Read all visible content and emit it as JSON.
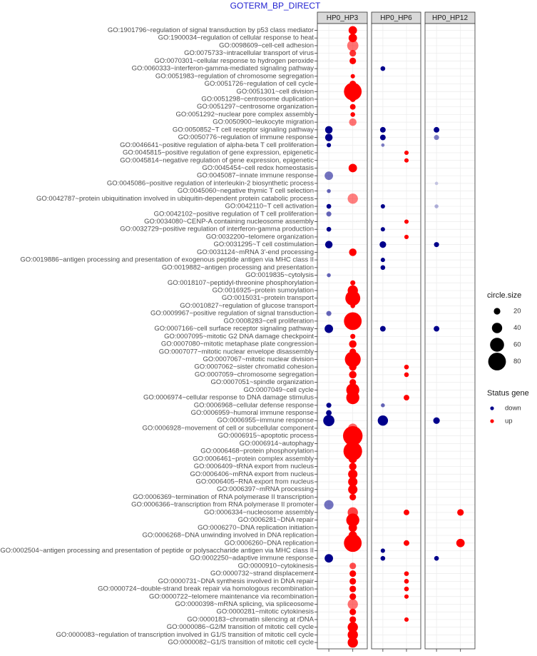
{
  "chart_data": {
    "type": "scatter",
    "title": "GOTERM_BP_DIRECT",
    "panels": [
      "HP0_HP3",
      "HP0_HP6",
      "HP0_HP12"
    ],
    "terms": [
      "GO:1901796~regulation of signal transduction by p53 class mediator",
      "GO:1900034~regulation of cellular response to heat",
      "GO:0098609~cell-cell adhesion",
      "GO:0075733~intracellular transport of virus",
      "GO:0070301~cellular response to hydrogen peroxide",
      "GO:0060333~interferon-gamma-mediated signaling pathway",
      "GO:0051983~regulation of chromosome segregation",
      "GO:0051726~regulation of cell cycle",
      "GO:0051301~cell division",
      "GO:0051298~centrosome duplication",
      "GO:0051297~centrosome organization",
      "GO:0051292~nuclear pore complex assembly",
      "GO:0050900~leukocyte migration",
      "GO:0050852~T cell receptor signaling pathway",
      "GO:0050776~regulation of immune response",
      "GO:0046641~positive regulation of alpha-beta T cell proliferation",
      "GO:0045815~positive regulation of gene expression, epigenetic",
      "GO:0045814~negative regulation of gene expression, epigenetic",
      "GO:0045454~cell redox homeostasis",
      "GO:0045087~innate immune response",
      "GO:0045086~positive regulation of interleukin-2 biosynthetic process",
      "GO:0045060~negative thymic T cell selection",
      "GO:0042787~protein ubiquitination involved in ubiquitin-dependent protein catabolic process",
      "GO:0042110~T cell activation",
      "GO:0042102~positive regulation of T cell proliferation",
      "GO:0034080~CENP-A containing nucleosome assembly",
      "GO:0032729~positive regulation of interferon-gamma production",
      "GO:0032200~telomere organization",
      "GO:0031295~T cell costimulation",
      "GO:0031124~mRNA 3'-end processing",
      "GO:0019886~antigen processing and presentation of exogenous peptide antigen via MHC class II",
      "GO:0019882~antigen processing and presentation",
      "GO:0019835~cytolysis",
      "GO:0018107~peptidyl-threonine phosphorylation",
      "GO:0016925~protein sumoylation",
      "GO:0015031~protein transport",
      "GO:0010827~regulation of glucose transport",
      "GO:0009967~positive regulation of signal transduction",
      "GO:0008283~cell proliferation",
      "GO:0007166~cell surface receptor signaling pathway",
      "GO:0007095~mitotic G2 DNA damage checkpoint",
      "GO:0007080~mitotic metaphase plate congression",
      "GO:0007077~mitotic nuclear envelope disassembly",
      "GO:0007067~mitotic nuclear division",
      "GO:0007062~sister chromatid cohesion",
      "GO:0007059~chromosome segregation",
      "GO:0007051~spindle organization",
      "GO:0007049~cell cycle",
      "GO:0006974~cellular response to DNA damage stimulus",
      "GO:0006968~cellular defense response",
      "GO:0006959~humoral immune response",
      "GO:0006955~immune response",
      "GO:0006928~movement of cell or subcellular component",
      "GO:0006915~apoptotic process",
      "GO:0006914~autophagy",
      "GO:0006468~protein phosphorylation",
      "GO:0006461~protein complex assembly",
      "GO:0006409~tRNA export from nucleus",
      "GO:0006406~mRNA export from nucleus",
      "GO:0006405~RNA export from nucleus",
      "GO:0006397~mRNA processing",
      "GO:0006369~termination of RNA polymerase II transcription",
      "GO:0006366~transcription from RNA polymerase II promoter",
      "GO:0006334~nucleosome assembly",
      "GO:0006281~DNA repair",
      "GO:0006270~DNA replication initiation",
      "GO:0006268~DNA unwinding involved in DNA replication",
      "GO:0006260~DNA replication",
      "GO:0002504~antigen processing and presentation of peptide or polysaccharide antigen via MHC class II",
      "GO:0002250~adaptive immune response",
      "GO:0000910~cytokinesis",
      "GO:0000732~strand displacement",
      "GO:0000731~DNA synthesis involved in DNA repair",
      "GO:0000724~double-strand break repair via homologous recombination",
      "GO:0000722~telomere maintenance via recombination",
      "GO:0000398~mRNA splicing, via spliceosome",
      "GO:0000281~mitotic cytokinesis",
      "GO:0000183~chromatin silencing at rDNA",
      "GO:0000086~G2/M transition of mitotic cell cycle",
      "GO:0000083~regulation of transcription involved in G1/S transition of mitotic cell cycle",
      "GO:0000082~G1/S transition of mitotic cell cycle"
    ],
    "points": [
      {
        "panel": 0,
        "term": 0,
        "status": "up",
        "size": 30,
        "alpha": 1
      },
      {
        "panel": 0,
        "term": 1,
        "status": "up",
        "size": 30,
        "alpha": 1
      },
      {
        "panel": 0,
        "term": 2,
        "status": "up",
        "size": 45,
        "alpha": 0.55
      },
      {
        "panel": 0,
        "term": 3,
        "status": "up",
        "size": 20,
        "alpha": 0.8
      },
      {
        "panel": 0,
        "term": 4,
        "status": "up",
        "size": 20,
        "alpha": 1
      },
      {
        "panel": 1,
        "term": 5,
        "status": "down",
        "size": 10,
        "alpha": 1
      },
      {
        "panel": 0,
        "term": 6,
        "status": "up",
        "size": 8,
        "alpha": 1
      },
      {
        "panel": 0,
        "term": 7,
        "status": "up",
        "size": 20,
        "alpha": 1
      },
      {
        "panel": 0,
        "term": 8,
        "status": "up",
        "size": 80,
        "alpha": 1
      },
      {
        "panel": 0,
        "term": 9,
        "status": "up",
        "size": 15,
        "alpha": 1
      },
      {
        "panel": 0,
        "term": 10,
        "status": "up",
        "size": 15,
        "alpha": 1
      },
      {
        "panel": 0,
        "term": 11,
        "status": "up",
        "size": 10,
        "alpha": 1
      },
      {
        "panel": 0,
        "term": 12,
        "status": "up",
        "size": 25,
        "alpha": 0.55
      },
      {
        "panel": 0,
        "term": 13,
        "status": "down",
        "size": 25,
        "alpha": 1
      },
      {
        "panel": 1,
        "term": 13,
        "status": "down",
        "size": 15,
        "alpha": 1
      },
      {
        "panel": 2,
        "term": 13,
        "status": "down",
        "size": 15,
        "alpha": 1
      },
      {
        "panel": 0,
        "term": 14,
        "status": "down",
        "size": 25,
        "alpha": 1
      },
      {
        "panel": 1,
        "term": 14,
        "status": "down",
        "size": 15,
        "alpha": 1
      },
      {
        "panel": 2,
        "term": 14,
        "status": "down",
        "size": 12,
        "alpha": 0.5
      },
      {
        "panel": 0,
        "term": 15,
        "status": "down",
        "size": 8,
        "alpha": 1
      },
      {
        "panel": 1,
        "term": 15,
        "status": "down",
        "size": 3,
        "alpha": 0.5
      },
      {
        "panel": 1,
        "term": 16,
        "status": "up",
        "size": 8,
        "alpha": 1
      },
      {
        "panel": 1,
        "term": 17,
        "status": "up",
        "size": 8,
        "alpha": 1
      },
      {
        "panel": 0,
        "term": 18,
        "status": "up",
        "size": 30,
        "alpha": 1
      },
      {
        "panel": 0,
        "term": 19,
        "status": "down",
        "size": 30,
        "alpha": 0.55
      },
      {
        "panel": 2,
        "term": 20,
        "status": "down",
        "size": 3,
        "alpha": 0.2
      },
      {
        "panel": 0,
        "term": 21,
        "status": "down",
        "size": 6,
        "alpha": 0.6
      },
      {
        "panel": 0,
        "term": 22,
        "status": "up",
        "size": 40,
        "alpha": 0.5
      },
      {
        "panel": 0,
        "term": 23,
        "status": "down",
        "size": 10,
        "alpha": 1
      },
      {
        "panel": 1,
        "term": 23,
        "status": "down",
        "size": 8,
        "alpha": 1
      },
      {
        "panel": 2,
        "term": 23,
        "status": "down",
        "size": 6,
        "alpha": 0.3
      },
      {
        "panel": 0,
        "term": 24,
        "status": "down",
        "size": 12,
        "alpha": 0.6
      },
      {
        "panel": 1,
        "term": 25,
        "status": "up",
        "size": 8,
        "alpha": 1
      },
      {
        "panel": 0,
        "term": 26,
        "status": "down",
        "size": 10,
        "alpha": 1
      },
      {
        "panel": 1,
        "term": 26,
        "status": "down",
        "size": 8,
        "alpha": 1
      },
      {
        "panel": 1,
        "term": 27,
        "status": "up",
        "size": 8,
        "alpha": 1
      },
      {
        "panel": 0,
        "term": 28,
        "status": "down",
        "size": 25,
        "alpha": 1
      },
      {
        "panel": 1,
        "term": 28,
        "status": "down",
        "size": 20,
        "alpha": 1
      },
      {
        "panel": 2,
        "term": 28,
        "status": "down",
        "size": 12,
        "alpha": 1
      },
      {
        "panel": 0,
        "term": 29,
        "status": "up",
        "size": 25,
        "alpha": 1
      },
      {
        "panel": 1,
        "term": 30,
        "status": "down",
        "size": 8,
        "alpha": 1
      },
      {
        "panel": 1,
        "term": 31,
        "status": "down",
        "size": 10,
        "alpha": 1
      },
      {
        "panel": 0,
        "term": 32,
        "status": "down",
        "size": 6,
        "alpha": 0.6
      },
      {
        "panel": 0,
        "term": 33,
        "status": "up",
        "size": 12,
        "alpha": 1
      },
      {
        "panel": 0,
        "term": 34,
        "status": "up",
        "size": 40,
        "alpha": 1
      },
      {
        "panel": 0,
        "term": 35,
        "status": "up",
        "size": 65,
        "alpha": 1
      },
      {
        "panel": 0,
        "term": 36,
        "status": "up",
        "size": 10,
        "alpha": 1
      },
      {
        "panel": 0,
        "term": 37,
        "status": "down",
        "size": 12,
        "alpha": 0.6
      },
      {
        "panel": 0,
        "term": 38,
        "status": "up",
        "size": 80,
        "alpha": 1
      },
      {
        "panel": 0,
        "term": 39,
        "status": "down",
        "size": 30,
        "alpha": 1
      },
      {
        "panel": 1,
        "term": 39,
        "status": "down",
        "size": 15,
        "alpha": 1
      },
      {
        "panel": 2,
        "term": 39,
        "status": "down",
        "size": 15,
        "alpha": 1
      },
      {
        "panel": 0,
        "term": 40,
        "status": "up",
        "size": 12,
        "alpha": 1
      },
      {
        "panel": 0,
        "term": 41,
        "status": "up",
        "size": 25,
        "alpha": 1
      },
      {
        "panel": 0,
        "term": 42,
        "status": "up",
        "size": 20,
        "alpha": 1
      },
      {
        "panel": 0,
        "term": 43,
        "status": "up",
        "size": 70,
        "alpha": 1
      },
      {
        "panel": 0,
        "term": 44,
        "status": "up",
        "size": 25,
        "alpha": 1
      },
      {
        "panel": 1,
        "term": 44,
        "status": "up",
        "size": 10,
        "alpha": 1
      },
      {
        "panel": 0,
        "term": 45,
        "status": "up",
        "size": 25,
        "alpha": 1
      },
      {
        "panel": 1,
        "term": 45,
        "status": "up",
        "size": 10,
        "alpha": 1
      },
      {
        "panel": 0,
        "term": 46,
        "status": "up",
        "size": 20,
        "alpha": 1
      },
      {
        "panel": 0,
        "term": 47,
        "status": "up",
        "size": 55,
        "alpha": 1
      },
      {
        "panel": 0,
        "term": 48,
        "status": "up",
        "size": 55,
        "alpha": 1
      },
      {
        "panel": 1,
        "term": 48,
        "status": "up",
        "size": 15,
        "alpha": 1
      },
      {
        "panel": 0,
        "term": 49,
        "status": "down",
        "size": 12,
        "alpha": 1
      },
      {
        "panel": 1,
        "term": 49,
        "status": "down",
        "size": 6,
        "alpha": 0.6
      },
      {
        "panel": 0,
        "term": 50,
        "status": "down",
        "size": 15,
        "alpha": 1
      },
      {
        "panel": 0,
        "term": 51,
        "status": "down",
        "size": 45,
        "alpha": 1
      },
      {
        "panel": 1,
        "term": 51,
        "status": "down",
        "size": 40,
        "alpha": 1
      },
      {
        "panel": 2,
        "term": 51,
        "status": "down",
        "size": 20,
        "alpha": 1
      },
      {
        "panel": 0,
        "term": 52,
        "status": "up",
        "size": 35,
        "alpha": 0.6
      },
      {
        "panel": 0,
        "term": 53,
        "status": "up",
        "size": 90,
        "alpha": 1
      },
      {
        "panel": 0,
        "term": 54,
        "status": "up",
        "size": 20,
        "alpha": 1
      },
      {
        "panel": 0,
        "term": 55,
        "status": "up",
        "size": 85,
        "alpha": 1
      },
      {
        "panel": 0,
        "term": 56,
        "status": "up",
        "size": 30,
        "alpha": 1
      },
      {
        "panel": 0,
        "term": 57,
        "status": "up",
        "size": 25,
        "alpha": 1
      },
      {
        "panel": 0,
        "term": 58,
        "status": "up",
        "size": 35,
        "alpha": 1
      },
      {
        "panel": 0,
        "term": 59,
        "status": "up",
        "size": 35,
        "alpha": 1
      },
      {
        "panel": 0,
        "term": 60,
        "status": "up",
        "size": 35,
        "alpha": 1
      },
      {
        "panel": 0,
        "term": 61,
        "status": "up",
        "size": 20,
        "alpha": 1
      },
      {
        "panel": 0,
        "term": 62,
        "status": "down",
        "size": 35,
        "alpha": 0.55
      },
      {
        "panel": 0,
        "term": 63,
        "status": "up",
        "size": 40,
        "alpha": 0.75
      },
      {
        "panel": 1,
        "term": 63,
        "status": "up",
        "size": 15,
        "alpha": 1
      },
      {
        "panel": 2,
        "term": 63,
        "status": "up",
        "size": 20,
        "alpha": 1
      },
      {
        "panel": 0,
        "term": 64,
        "status": "up",
        "size": 55,
        "alpha": 1
      },
      {
        "panel": 0,
        "term": 65,
        "status": "up",
        "size": 30,
        "alpha": 1
      },
      {
        "panel": 0,
        "term": 66,
        "status": "up",
        "size": 30,
        "alpha": 1
      },
      {
        "panel": 0,
        "term": 67,
        "status": "up",
        "size": 80,
        "alpha": 1
      },
      {
        "panel": 1,
        "term": 67,
        "status": "up",
        "size": 15,
        "alpha": 1
      },
      {
        "panel": 2,
        "term": 67,
        "status": "up",
        "size": 30,
        "alpha": 1
      },
      {
        "panel": 1,
        "term": 68,
        "status": "down",
        "size": 8,
        "alpha": 1
      },
      {
        "panel": 0,
        "term": 69,
        "status": "down",
        "size": 30,
        "alpha": 1
      },
      {
        "panel": 1,
        "term": 69,
        "status": "down",
        "size": 10,
        "alpha": 1
      },
      {
        "panel": 2,
        "term": 69,
        "status": "down",
        "size": 10,
        "alpha": 1
      },
      {
        "panel": 0,
        "term": 70,
        "status": "up",
        "size": 20,
        "alpha": 0.7
      },
      {
        "panel": 0,
        "term": 71,
        "status": "up",
        "size": 20,
        "alpha": 1
      },
      {
        "panel": 1,
        "term": 71,
        "status": "up",
        "size": 10,
        "alpha": 1
      },
      {
        "panel": 0,
        "term": 72,
        "status": "up",
        "size": 20,
        "alpha": 1
      },
      {
        "panel": 1,
        "term": 72,
        "status": "up",
        "size": 10,
        "alpha": 1
      },
      {
        "panel": 0,
        "term": 73,
        "status": "up",
        "size": 20,
        "alpha": 1
      },
      {
        "panel": 1,
        "term": 73,
        "status": "up",
        "size": 10,
        "alpha": 1
      },
      {
        "panel": 0,
        "term": 74,
        "status": "up",
        "size": 20,
        "alpha": 1
      },
      {
        "panel": 1,
        "term": 74,
        "status": "up",
        "size": 8,
        "alpha": 1
      },
      {
        "panel": 0,
        "term": 75,
        "status": "up",
        "size": 40,
        "alpha": 0.55
      },
      {
        "panel": 0,
        "term": 76,
        "status": "up",
        "size": 20,
        "alpha": 1
      },
      {
        "panel": 0,
        "term": 77,
        "status": "up",
        "size": 20,
        "alpha": 1
      },
      {
        "panel": 1,
        "term": 77,
        "status": "up",
        "size": 8,
        "alpha": 1
      },
      {
        "panel": 0,
        "term": 78,
        "status": "up",
        "size": 40,
        "alpha": 1
      },
      {
        "panel": 0,
        "term": 79,
        "status": "up",
        "size": 40,
        "alpha": 1
      },
      {
        "panel": 0,
        "term": 80,
        "status": "up",
        "size": 40,
        "alpha": 1
      }
    ],
    "legend_size": {
      "title": "circle.size",
      "values": [
        20,
        40,
        60,
        80
      ],
      "labels": [
        "20",
        "40",
        "60",
        "80"
      ]
    },
    "legend_color": {
      "title": "Status gene",
      "entries": [
        {
          "label": "down",
          "color": "#00008b"
        },
        {
          "label": "up",
          "color": "#ff0000"
        }
      ]
    },
    "legend_position": "right",
    "grid": true
  }
}
